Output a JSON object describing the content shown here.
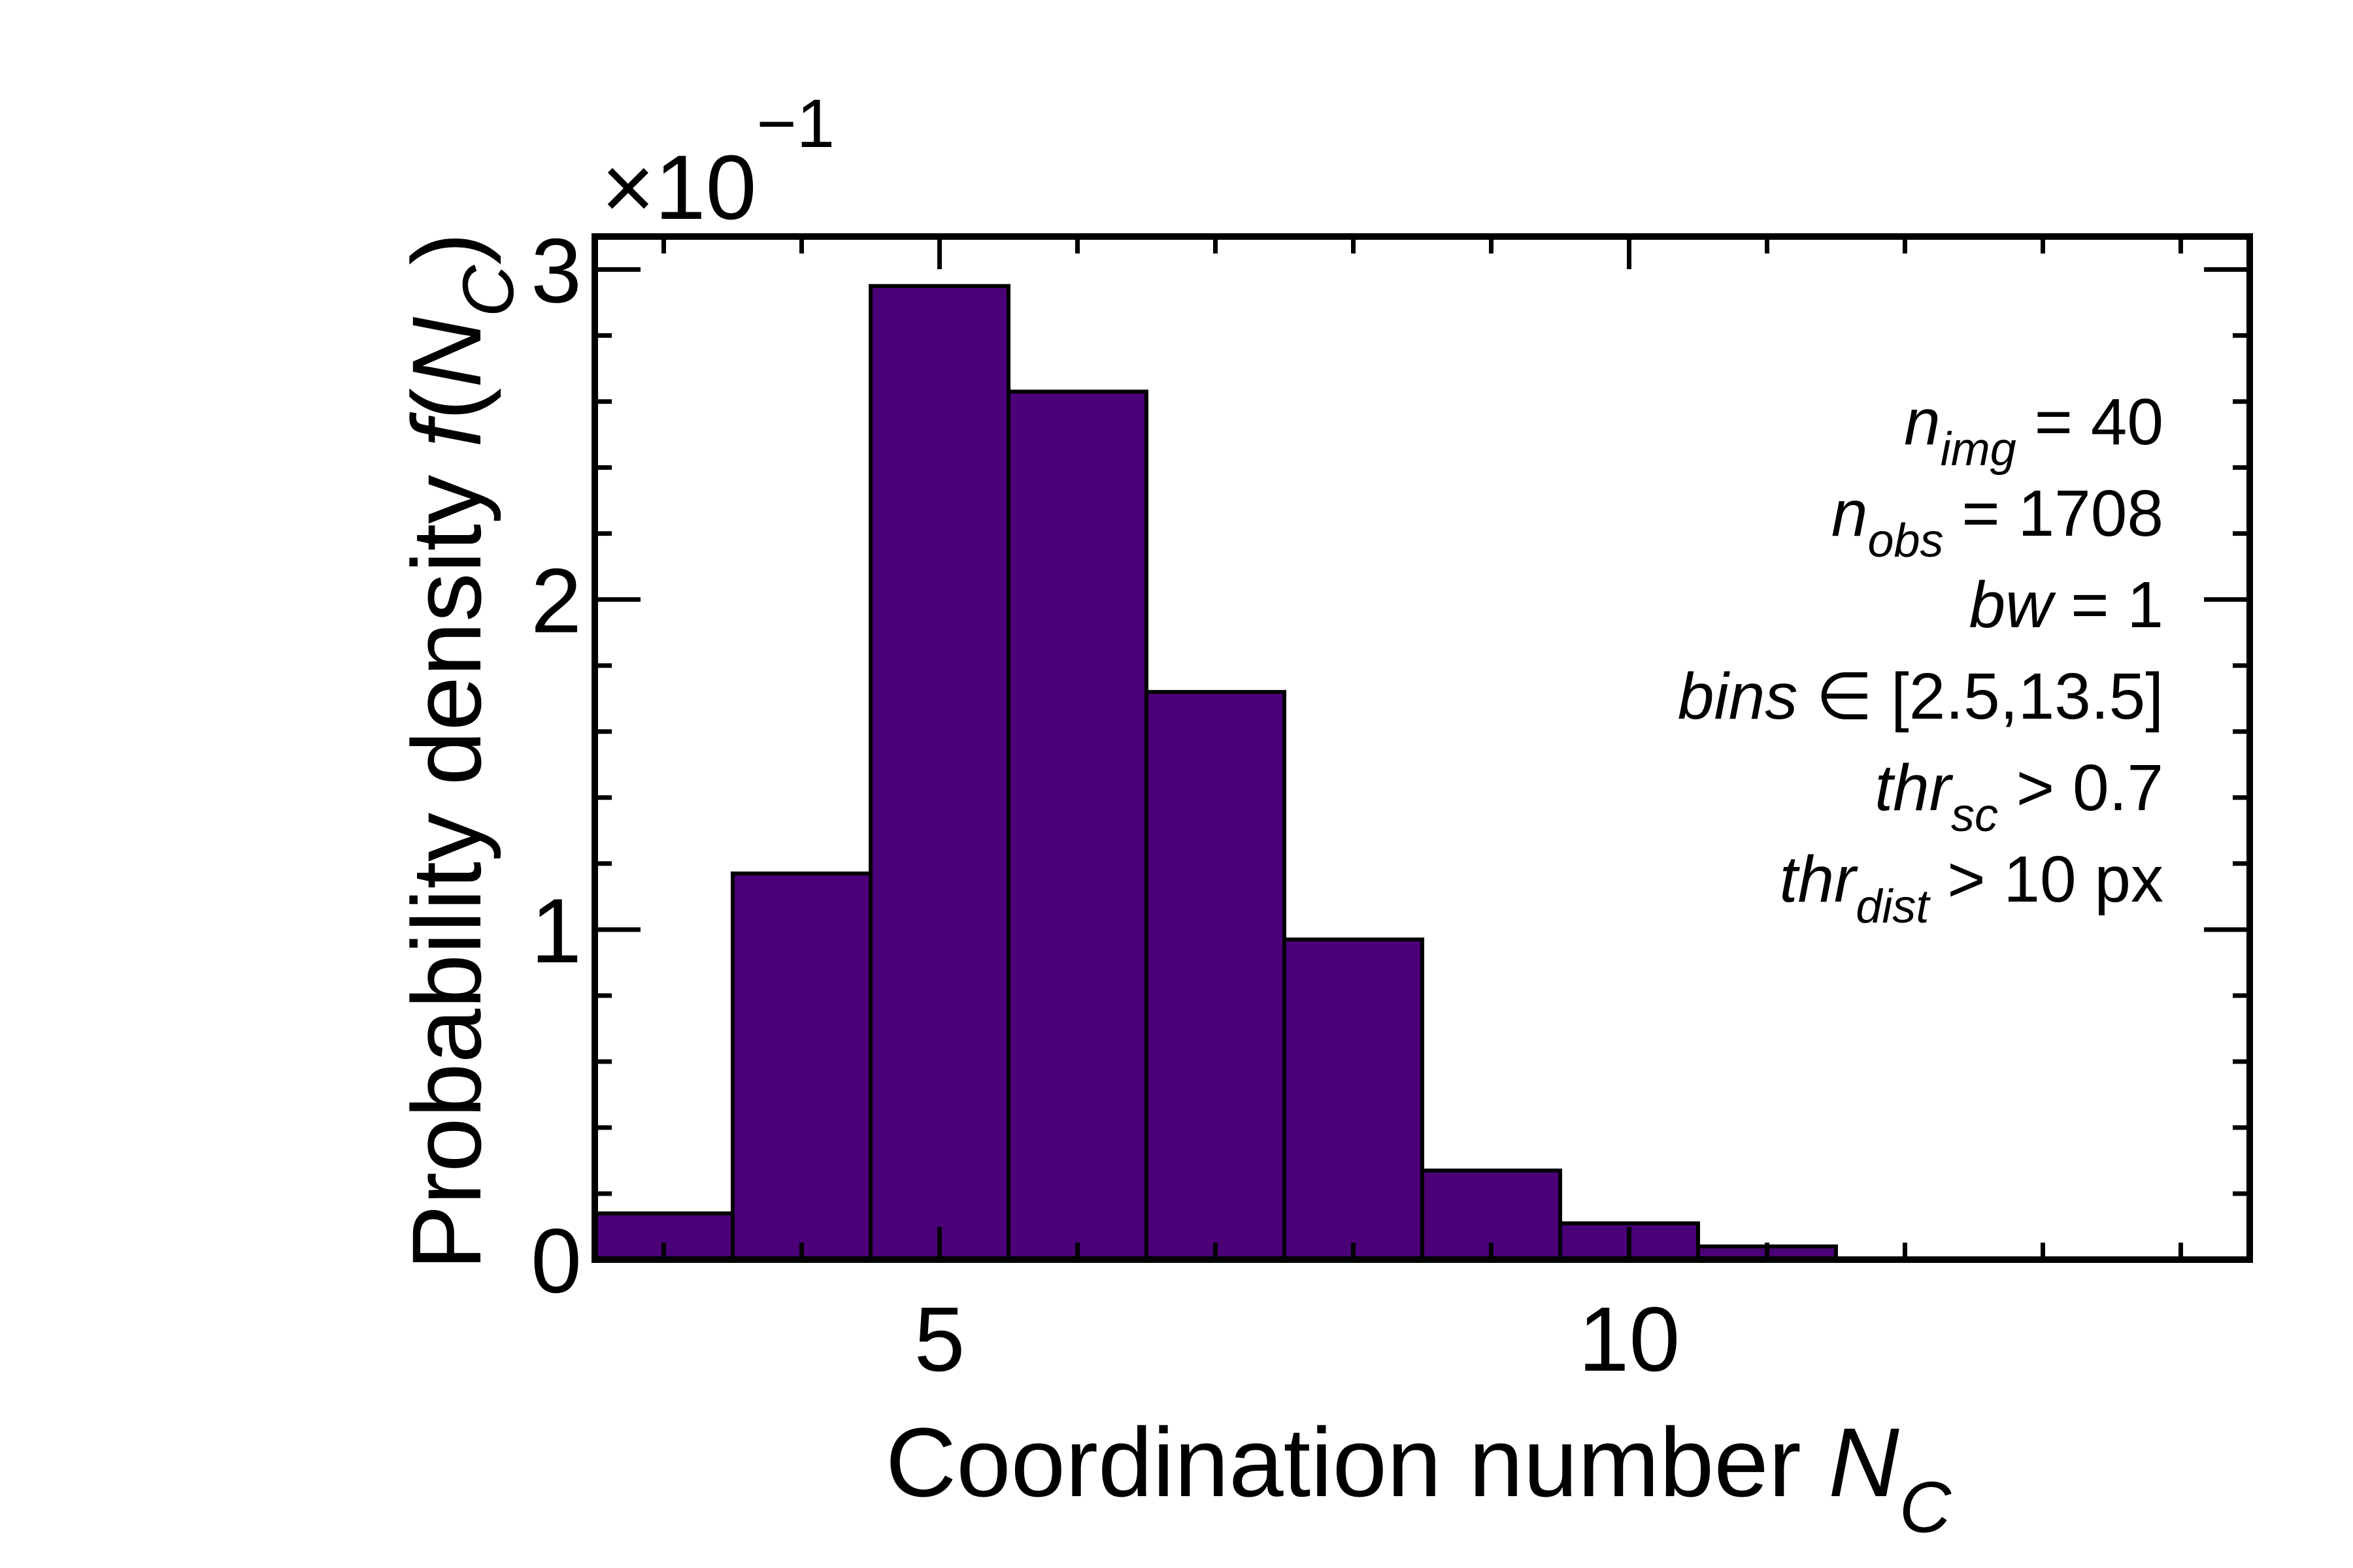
{
  "chart_data": {
    "type": "bar",
    "x_tick_labels": [
      "5",
      "10"
    ],
    "y_tick_labels": [
      "0",
      "1",
      "2",
      "3"
    ],
    "y_multiplier": {
      "base": "×10",
      "exponent": "−1"
    },
    "xlabel": {
      "main": "Coordination number ",
      "var": "N",
      "sub": "C"
    },
    "ylabel": {
      "main": "Probability density ",
      "func": "f",
      "open": "(",
      "var": "N",
      "sub": "C",
      "close": ")"
    },
    "xlim": [
      2.5,
      14.5
    ],
    "ylim": [
      0,
      3.1
    ],
    "bin_width": 1,
    "bins": [
      {
        "center": 3,
        "value": 0.14
      },
      {
        "center": 4,
        "value": 1.17
      },
      {
        "center": 5,
        "value": 2.95
      },
      {
        "center": 6,
        "value": 2.63
      },
      {
        "center": 7,
        "value": 1.72
      },
      {
        "center": 8,
        "value": 0.97
      },
      {
        "center": 9,
        "value": 0.27
      },
      {
        "center": 10,
        "value": 0.11
      },
      {
        "center": 11,
        "value": 0.04
      },
      {
        "center": 12,
        "value": 0.0
      },
      {
        "center": 13,
        "value": 0.0
      }
    ],
    "bar_color": "#4b0078",
    "edge_color": "#000000",
    "grid": false,
    "annotations": [
      {
        "var": "n",
        "sub": "img",
        "rest": " = 40"
      },
      {
        "var": "n",
        "sub": "obs",
        "rest": " = 1708"
      },
      {
        "var": "bw",
        "sub": "",
        "rest": " = 1 "
      },
      {
        "var": "bins",
        "sub": "",
        "rest": " ∈ [2.5,13.5]"
      },
      {
        "var": "thr",
        "sub": "sc",
        "rest": " >  0.7"
      },
      {
        "var": "thr",
        "sub": "dist",
        "rest": " > 10 px"
      }
    ]
  }
}
